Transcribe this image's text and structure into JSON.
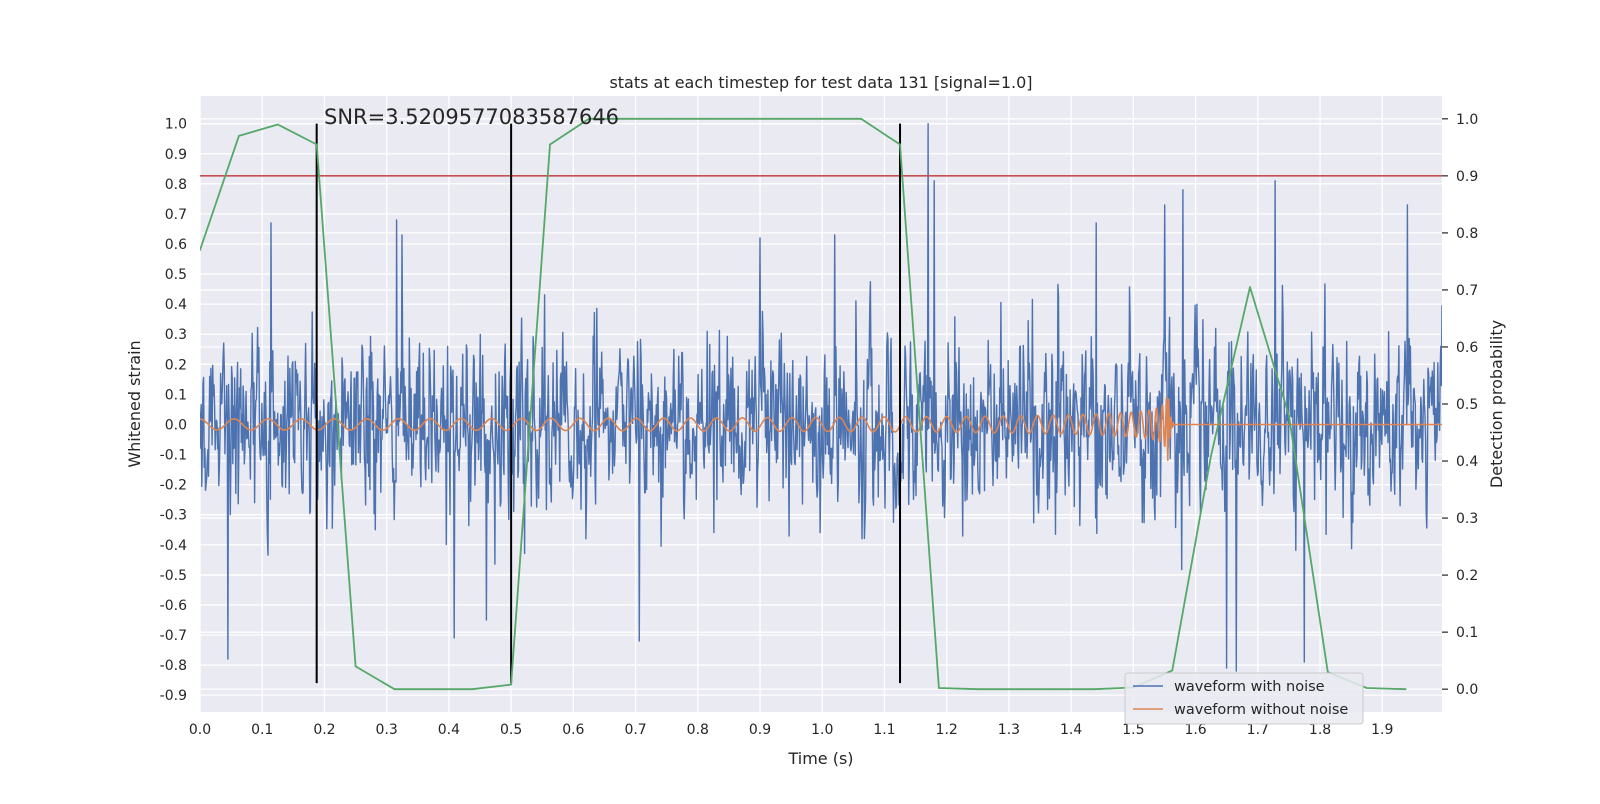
{
  "chart_data": {
    "type": "line",
    "title": "stats at each timestep for test data 131 [signal=1.0]",
    "xlabel": "Time (s)",
    "ylabel_left": "Whitened strain",
    "ylabel_right": "Detection probability",
    "xlim": [
      0.0,
      1.996
    ],
    "ylim_left": [
      -0.956,
      1.092
    ],
    "ylim_right": [
      -0.04,
      1.04
    ],
    "grid": true,
    "x_ticks": [
      "0.0",
      "0.1",
      "0.2",
      "0.3",
      "0.4",
      "0.5",
      "0.6",
      "0.7",
      "0.8",
      "0.9",
      "1.0",
      "1.1",
      "1.2",
      "1.3",
      "1.4",
      "1.5",
      "1.6",
      "1.7",
      "1.8",
      "1.9"
    ],
    "y_left_ticks": [
      "1.0",
      "0.9",
      "0.8",
      "0.7",
      "0.6",
      "0.5",
      "0.4",
      "0.3",
      "0.2",
      "0.1",
      "0.0",
      "-0.1",
      "-0.2",
      "-0.3",
      "-0.4",
      "-0.5",
      "-0.6",
      "-0.7",
      "-0.8",
      "-0.9"
    ],
    "y_right_ticks": [
      "1.0",
      "0.9",
      "0.8",
      "0.7",
      "0.6",
      "0.5",
      "0.4",
      "0.3",
      "0.2",
      "0.1",
      "0.0"
    ],
    "annotation": "SNR=3.5209577083587646",
    "threshold_probability": 0.9,
    "vertical_markers": [
      0.1875,
      0.5,
      1.125
    ],
    "vertical_marker_range": [
      -0.86,
      1.0
    ],
    "legend": {
      "position": "lower-right",
      "entries": [
        "waveform with noise",
        "waveform without noise"
      ]
    },
    "series": [
      {
        "name": "waveform with noise",
        "color": "#4c72b0",
        "axis": "left",
        "kind": "noise",
        "samples": 2048,
        "seed": 131,
        "std": 0.24,
        "max": 1.0,
        "min": -0.82,
        "spikes": [
          {
            "x": 0.045,
            "y": -0.78
          },
          {
            "x": 0.114,
            "y": 0.67
          },
          {
            "x": 0.316,
            "y": 0.68
          },
          {
            "x": 0.325,
            "y": 0.63
          },
          {
            "x": 0.409,
            "y": -0.71
          },
          {
            "x": 0.46,
            "y": -0.65
          },
          {
            "x": 0.706,
            "y": -0.72
          },
          {
            "x": 0.9,
            "y": 0.62
          },
          {
            "x": 1.02,
            "y": 0.63
          },
          {
            "x": 1.17,
            "y": 1.0
          },
          {
            "x": 1.18,
            "y": 0.81
          },
          {
            "x": 1.44,
            "y": 0.67
          },
          {
            "x": 1.55,
            "y": 0.73
          },
          {
            "x": 1.58,
            "y": 0.78
          },
          {
            "x": 1.65,
            "y": -0.81
          },
          {
            "x": 1.665,
            "y": -0.82
          },
          {
            "x": 1.728,
            "y": 0.81
          },
          {
            "x": 1.775,
            "y": -0.79
          },
          {
            "x": 1.94,
            "y": 0.73
          }
        ]
      },
      {
        "name": "waveform without noise",
        "color": "#dd8452",
        "axis": "left",
        "kind": "chirp",
        "t_merger": 1.556,
        "base_freq": 18,
        "ringdown_end": 1.565,
        "base_amp": 0.018,
        "peak_amp": 0.16
      },
      {
        "name": "detection probability",
        "color": "#55a868",
        "axis": "right",
        "kind": "line",
        "x": [
          0.0,
          0.0625,
          0.125,
          0.1875,
          0.25,
          0.3125,
          0.375,
          0.4375,
          0.5,
          0.5625,
          0.625,
          0.6875,
          0.75,
          0.8125,
          0.875,
          0.9375,
          1.0,
          1.0625,
          1.125,
          1.1875,
          1.25,
          1.3125,
          1.375,
          1.4375,
          1.5,
          1.5625,
          1.625,
          1.6875,
          1.75,
          1.8125,
          1.875,
          1.9375
        ],
        "y": [
          0.77,
          0.97,
          0.99,
          0.955,
          0.04,
          0.0,
          0.0,
          0.0,
          0.008,
          0.955,
          1.0,
          1.0,
          1.0,
          1.0,
          1.0,
          1.0,
          1.0,
          1.0,
          0.955,
          0.002,
          0.0,
          0.0,
          0.0,
          0.0,
          0.003,
          0.033,
          0.41,
          0.705,
          0.48,
          0.03,
          0.002,
          0.0
        ]
      }
    ]
  }
}
